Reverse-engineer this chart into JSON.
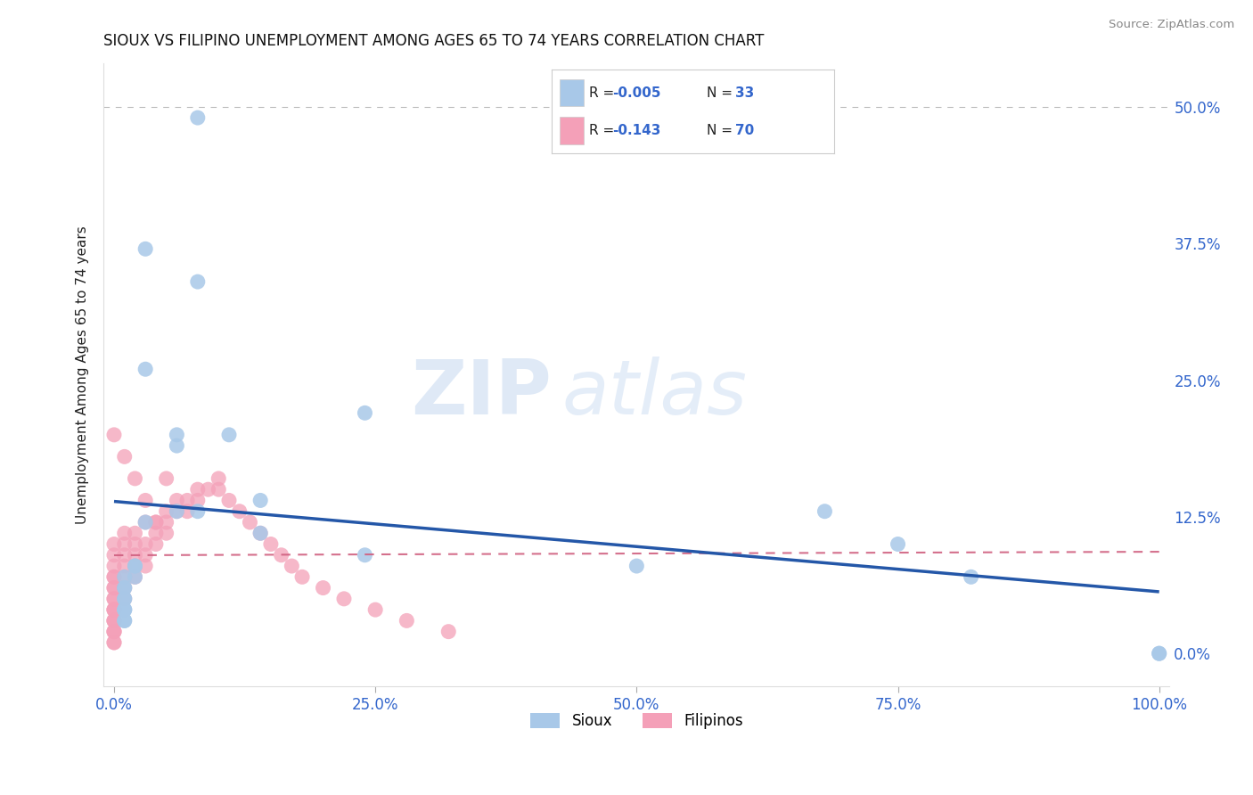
{
  "title": "SIOUX VS FILIPINO UNEMPLOYMENT AMONG AGES 65 TO 74 YEARS CORRELATION CHART",
  "source": "Source: ZipAtlas.com",
  "ylabel": "Unemployment Among Ages 65 to 74 years",
  "xlim": [
    -1,
    101
  ],
  "ylim": [
    -3,
    54
  ],
  "xtick_positions": [
    0,
    25,
    50,
    75,
    100
  ],
  "xtick_labels": [
    "0.0%",
    "25.0%",
    "50.0%",
    "75.0%",
    "100.0%"
  ],
  "ytick_positions": [
    0,
    12.5,
    25,
    37.5,
    50
  ],
  "ytick_labels": [
    "0.0%",
    "12.5%",
    "25.0%",
    "37.5%",
    "50.0%"
  ],
  "sioux_R": "-0.005",
  "sioux_N": "33",
  "filipino_R": "-0.143",
  "filipino_N": "70",
  "sioux_color": "#a8c8e8",
  "filipino_color": "#f4a0b8",
  "sioux_line_color": "#2457a8",
  "filipino_line_color": "#d06080",
  "tick_color": "#3366cc",
  "hline_y": 12.5,
  "dotted_hline_y": 50.0,
  "sioux_x": [
    8,
    8,
    3,
    3,
    6,
    6,
    6,
    8,
    11,
    14,
    3,
    2,
    2,
    2,
    1,
    1,
    1,
    1,
    1,
    1,
    1,
    1,
    1,
    1,
    14,
    24,
    24,
    50,
    68,
    75,
    82,
    100,
    100
  ],
  "sioux_y": [
    49,
    34,
    37,
    26,
    20,
    19,
    13,
    13,
    20,
    14,
    12,
    8,
    8,
    7,
    7,
    6,
    6,
    5,
    5,
    4,
    4,
    4,
    3,
    3,
    11,
    22,
    9,
    8,
    13,
    10,
    7,
    0,
    0
  ],
  "filipino_x": [
    0,
    0,
    0,
    0,
    0,
    0,
    0,
    0,
    0,
    0,
    0,
    0,
    0,
    0,
    0,
    0,
    0,
    0,
    0,
    0,
    1,
    1,
    1,
    1,
    1,
    1,
    1,
    2,
    2,
    2,
    2,
    2,
    3,
    3,
    3,
    3,
    4,
    4,
    4,
    5,
    5,
    5,
    6,
    6,
    7,
    7,
    8,
    8,
    9,
    10,
    10,
    11,
    12,
    13,
    14,
    15,
    16,
    17,
    18,
    20,
    22,
    25,
    28,
    32,
    0,
    1,
    2,
    3,
    4,
    5
  ],
  "filipino_y": [
    10,
    9,
    8,
    7,
    7,
    6,
    6,
    5,
    5,
    4,
    4,
    4,
    3,
    3,
    3,
    2,
    2,
    2,
    1,
    1,
    11,
    10,
    9,
    8,
    7,
    6,
    5,
    11,
    10,
    9,
    8,
    7,
    12,
    10,
    9,
    8,
    12,
    11,
    10,
    13,
    12,
    11,
    14,
    13,
    14,
    13,
    15,
    14,
    15,
    16,
    15,
    14,
    13,
    12,
    11,
    10,
    9,
    8,
    7,
    6,
    5,
    4,
    3,
    2,
    20,
    18,
    16,
    14,
    12,
    16
  ],
  "watermark_text": "ZIPatlas",
  "legend_text_color_R": "#000000",
  "legend_text_color_N": "#3366cc"
}
